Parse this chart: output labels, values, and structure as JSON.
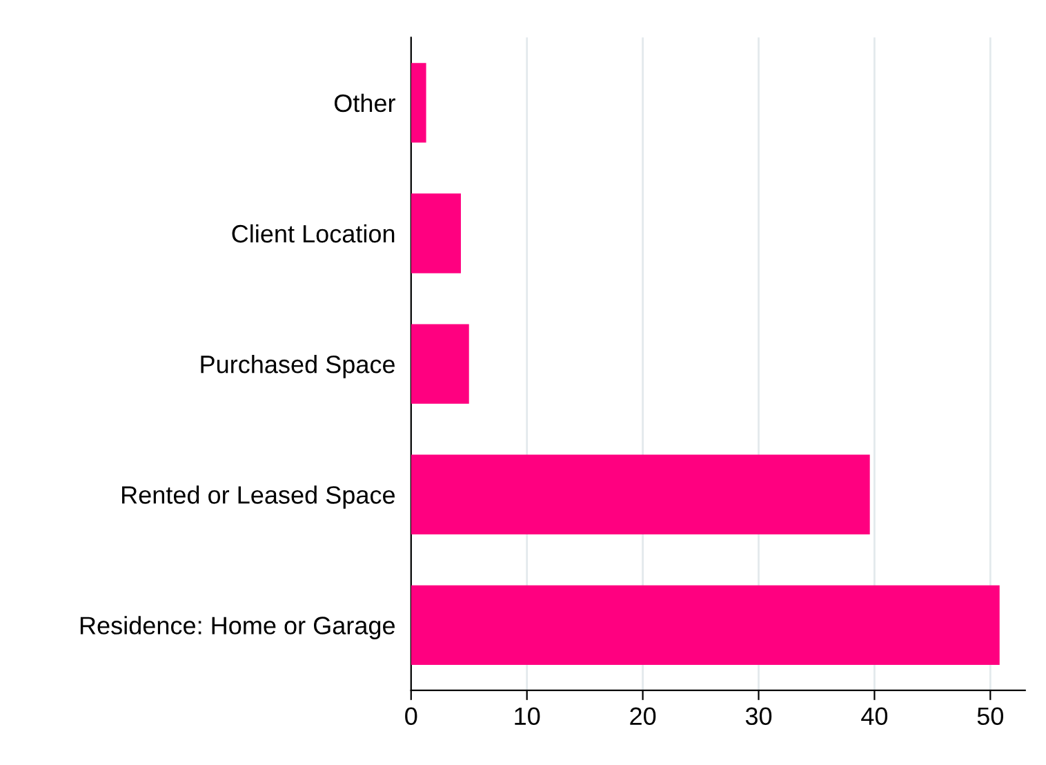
{
  "chart_data": {
    "type": "bar",
    "orientation": "horizontal",
    "categories": [
      "Other",
      "Client Location",
      "Purchased Space",
      "Rented or Leased Space",
      "Residence: Home or Garage"
    ],
    "values": [
      1.3,
      4.3,
      5.0,
      39.6,
      50.8
    ],
    "color": "#ff0080",
    "xlim": [
      0,
      53
    ],
    "xticks": [
      0,
      10,
      20,
      30,
      40,
      50
    ],
    "grid": "x",
    "legend": false
  }
}
